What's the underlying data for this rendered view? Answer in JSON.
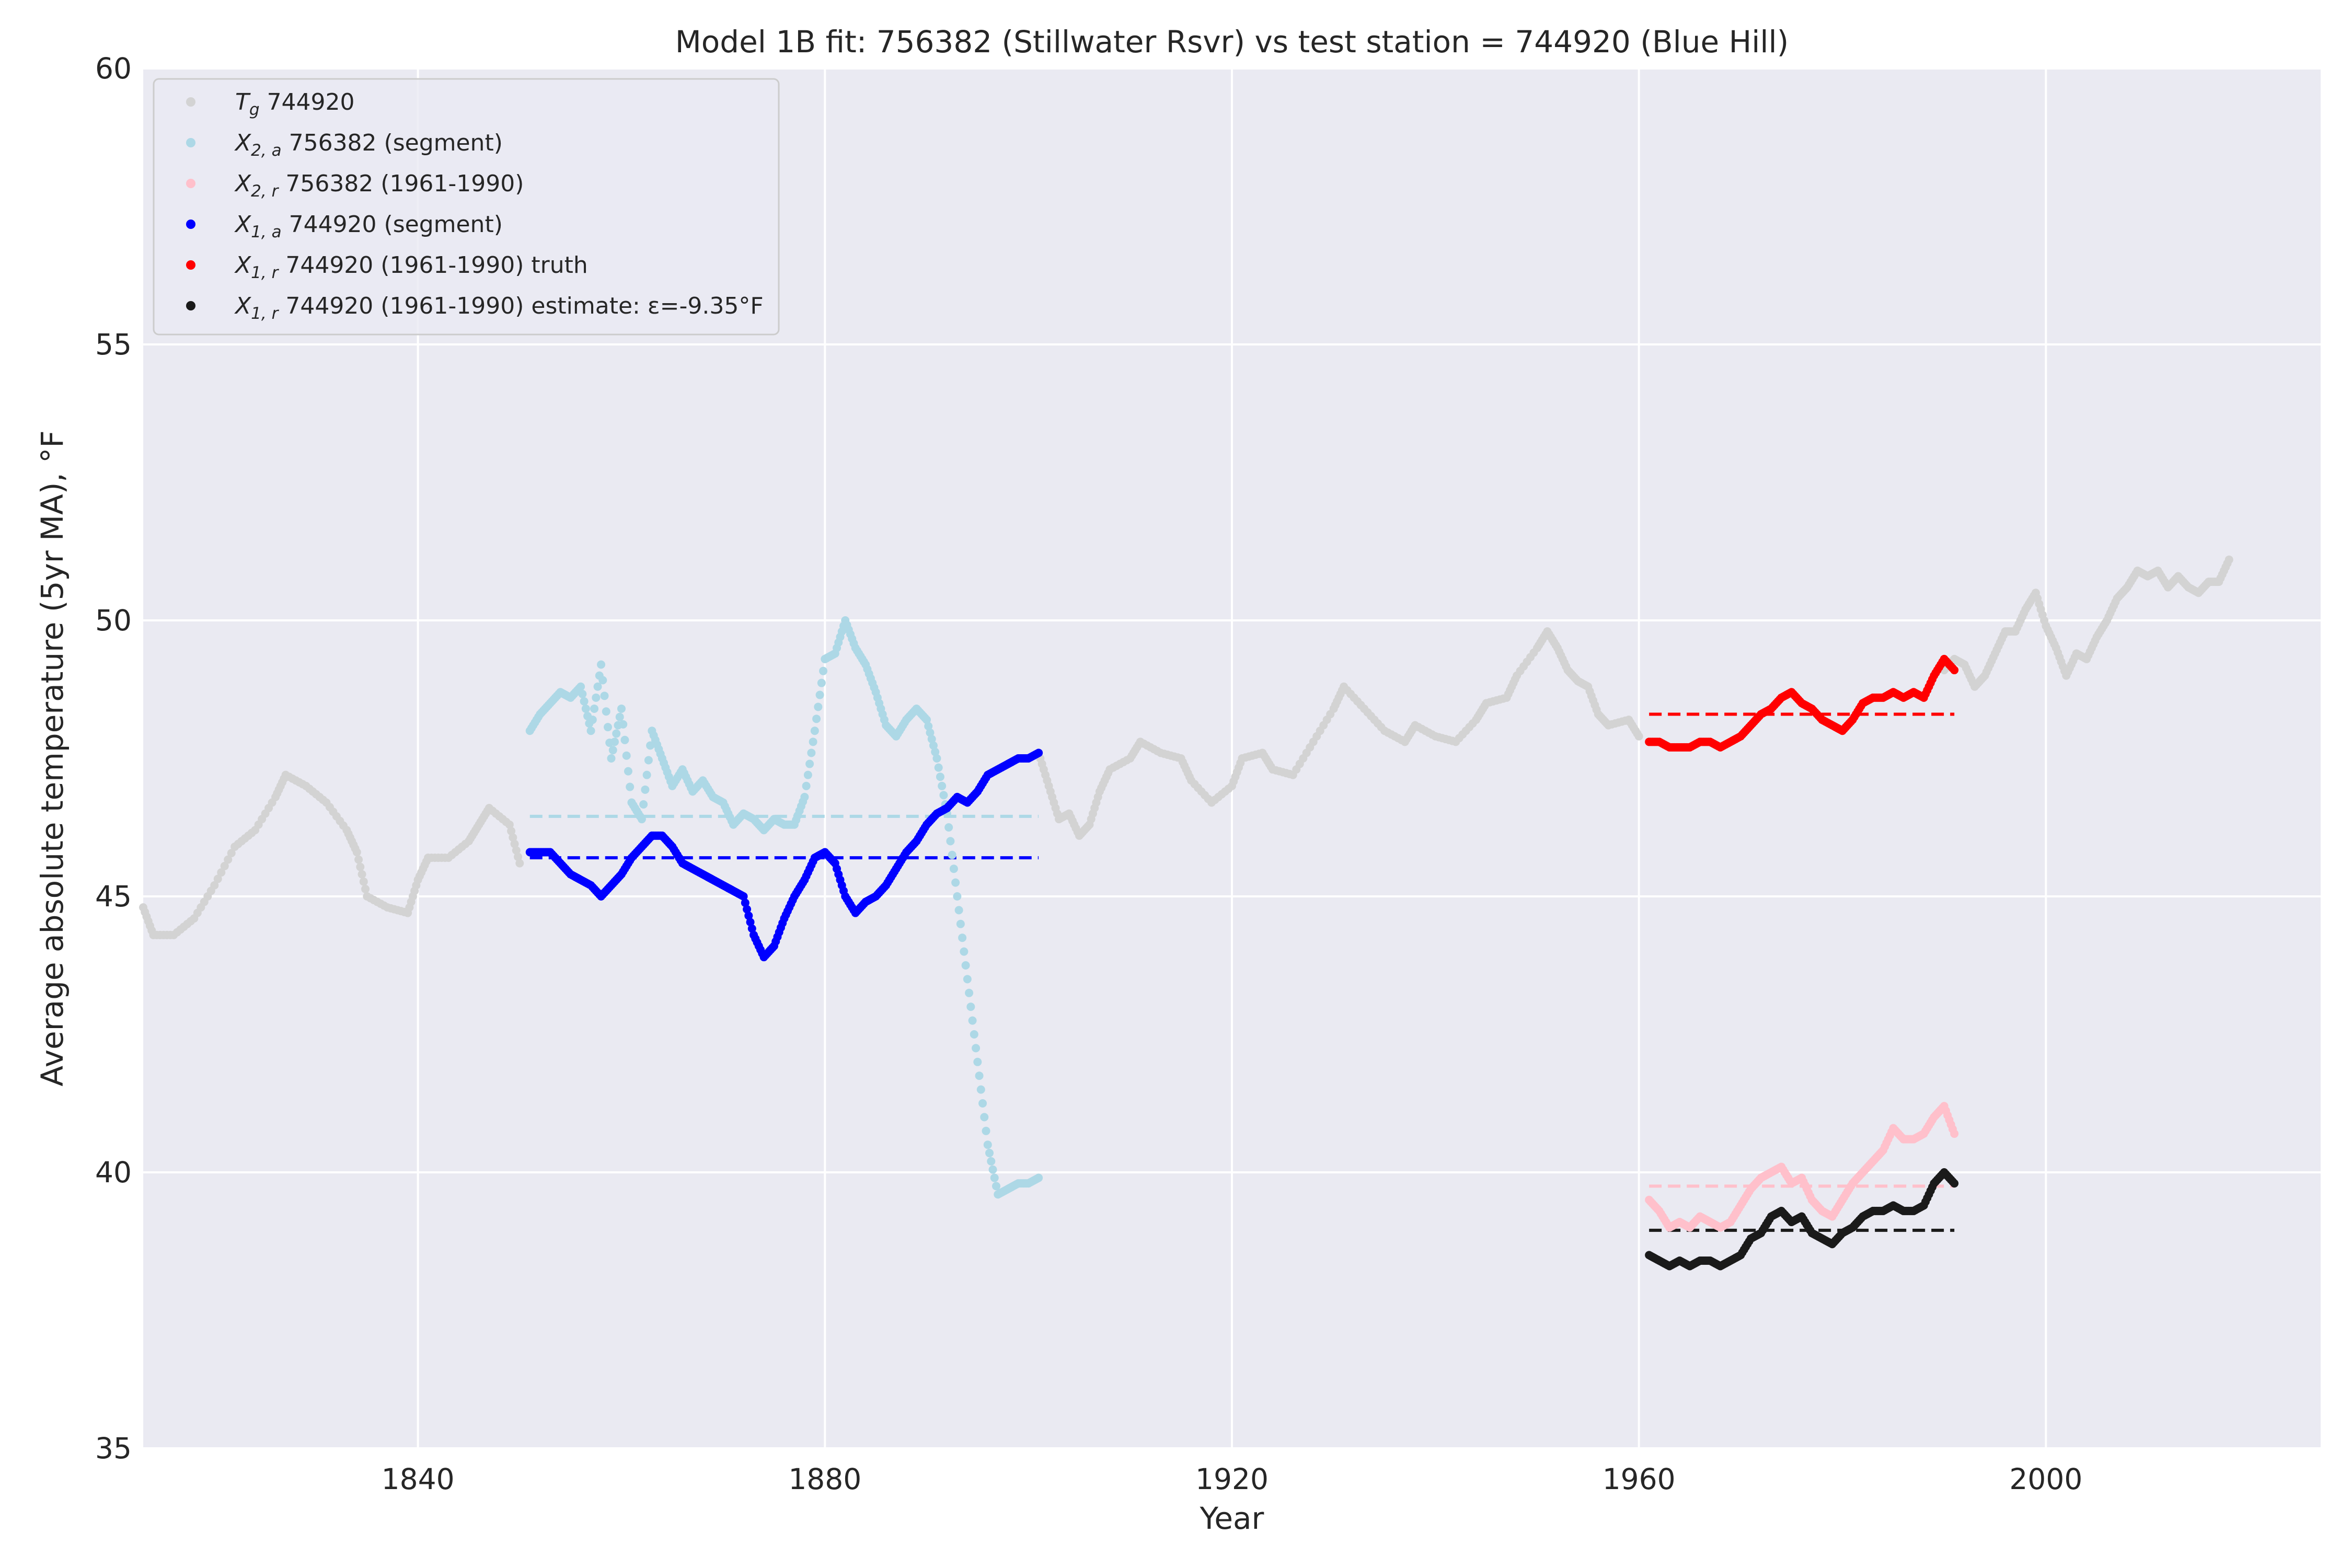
{
  "chart_data": {
    "type": "scatter",
    "title": "Model 1B fit: 756382 (Stillwater Rsvr) vs test station = 744920 (Blue Hill)",
    "xlabel": "Year",
    "ylabel": "Average absolute temperature (5yr MA), °F",
    "xlim": [
      1813,
      2027
    ],
    "ylim": [
      35,
      60
    ],
    "xticks": [
      1840,
      1880,
      1920,
      1960,
      2000
    ],
    "yticks": [
      35,
      40,
      45,
      50,
      55,
      60
    ],
    "grid": true,
    "legend_position": "top-left",
    "series": [
      {
        "key": "tg",
        "name_main": "T",
        "name_sub": "g",
        "name_rest": " 744920",
        "color": "#d3d3d3",
        "points": [
          [
            1813,
            44.8
          ],
          [
            1814,
            44.3
          ],
          [
            1816,
            44.3
          ],
          [
            1818,
            44.6
          ],
          [
            1820,
            45.2
          ],
          [
            1822,
            45.9
          ],
          [
            1824,
            46.2
          ],
          [
            1826,
            46.8
          ],
          [
            1827,
            47.2
          ],
          [
            1829,
            47.0
          ],
          [
            1831,
            46.7
          ],
          [
            1833,
            46.2
          ],
          [
            1834,
            45.8
          ],
          [
            1835,
            45.0
          ],
          [
            1837,
            44.8
          ],
          [
            1839,
            44.7
          ],
          [
            1840,
            45.3
          ],
          [
            1841,
            45.7
          ],
          [
            1843,
            45.7
          ],
          [
            1845,
            46.0
          ],
          [
            1846,
            46.3
          ],
          [
            1847,
            46.6
          ],
          [
            1849,
            46.3
          ],
          [
            1850,
            45.6
          ],
          [
            1901,
            47.6
          ],
          [
            1902,
            47.0
          ],
          [
            1903,
            46.4
          ],
          [
            1904,
            46.5
          ],
          [
            1905,
            46.1
          ],
          [
            1906,
            46.3
          ],
          [
            1907,
            46.9
          ],
          [
            1908,
            47.3
          ],
          [
            1910,
            47.5
          ],
          [
            1911,
            47.8
          ],
          [
            1913,
            47.6
          ],
          [
            1915,
            47.5
          ],
          [
            1916,
            47.1
          ],
          [
            1918,
            46.7
          ],
          [
            1920,
            47.0
          ],
          [
            1921,
            47.5
          ],
          [
            1923,
            47.6
          ],
          [
            1924,
            47.3
          ],
          [
            1926,
            47.2
          ],
          [
            1928,
            47.8
          ],
          [
            1930,
            48.4
          ],
          [
            1931,
            48.8
          ],
          [
            1933,
            48.4
          ],
          [
            1935,
            48.0
          ],
          [
            1937,
            47.8
          ],
          [
            1938,
            48.1
          ],
          [
            1940,
            47.9
          ],
          [
            1942,
            47.8
          ],
          [
            1944,
            48.2
          ],
          [
            1945,
            48.5
          ],
          [
            1947,
            48.6
          ],
          [
            1948,
            49.0
          ],
          [
            1950,
            49.5
          ],
          [
            1951,
            49.8
          ],
          [
            1952,
            49.5
          ],
          [
            1953,
            49.1
          ],
          [
            1954,
            48.9
          ],
          [
            1955,
            48.8
          ],
          [
            1956,
            48.3
          ],
          [
            1957,
            48.1
          ],
          [
            1959,
            48.2
          ],
          [
            1960,
            47.9
          ],
          [
            1990,
            49.1
          ],
          [
            1991,
            49.3
          ],
          [
            1992,
            49.2
          ],
          [
            1993,
            48.8
          ],
          [
            1994,
            49.0
          ],
          [
            1995,
            49.4
          ],
          [
            1996,
            49.8
          ],
          [
            1997,
            49.8
          ],
          [
            1998,
            50.2
          ],
          [
            1999,
            50.5
          ],
          [
            2000,
            49.9
          ],
          [
            2001,
            49.5
          ],
          [
            2002,
            49.0
          ],
          [
            2003,
            49.4
          ],
          [
            2004,
            49.3
          ],
          [
            2005,
            49.7
          ],
          [
            2006,
            50.0
          ],
          [
            2007,
            50.4
          ],
          [
            2008,
            50.6
          ],
          [
            2009,
            50.9
          ],
          [
            2010,
            50.8
          ],
          [
            2011,
            50.9
          ],
          [
            2012,
            50.6
          ],
          [
            2013,
            50.8
          ],
          [
            2014,
            50.6
          ],
          [
            2015,
            50.5
          ],
          [
            2016,
            50.7
          ],
          [
            2017,
            50.7
          ],
          [
            2018,
            51.1
          ]
        ]
      },
      {
        "key": "x2a",
        "name_main": "X",
        "name_sub": "2, a",
        "name_rest": " 756382 (segment)",
        "color": "#add8e6",
        "points": [
          [
            1851,
            48.0
          ],
          [
            1852,
            48.3
          ],
          [
            1853,
            48.5
          ],
          [
            1854,
            48.7
          ],
          [
            1855,
            48.6
          ],
          [
            1856,
            48.8
          ],
          [
            1857,
            48.0
          ],
          [
            1858,
            49.2
          ],
          [
            1859,
            47.5
          ],
          [
            1860,
            48.4
          ],
          [
            1861,
            46.7
          ],
          [
            1862,
            46.4
          ],
          [
            1863,
            48.0
          ],
          [
            1864,
            47.5
          ],
          [
            1865,
            47.0
          ],
          [
            1866,
            47.3
          ],
          [
            1867,
            46.9
          ],
          [
            1868,
            47.1
          ],
          [
            1869,
            46.8
          ],
          [
            1870,
            46.7
          ],
          [
            1871,
            46.3
          ],
          [
            1872,
            46.5
          ],
          [
            1873,
            46.4
          ],
          [
            1874,
            46.2
          ],
          [
            1875,
            46.4
          ],
          [
            1876,
            46.3
          ],
          [
            1877,
            46.3
          ],
          [
            1878,
            46.8
          ],
          [
            1879,
            48.0
          ],
          [
            1880,
            49.3
          ],
          [
            1881,
            49.4
          ],
          [
            1882,
            50.0
          ],
          [
            1883,
            49.5
          ],
          [
            1884,
            49.2
          ],
          [
            1885,
            48.7
          ],
          [
            1886,
            48.1
          ],
          [
            1887,
            47.9
          ],
          [
            1888,
            48.2
          ],
          [
            1889,
            48.4
          ],
          [
            1890,
            48.2
          ],
          [
            1891,
            47.5
          ],
          [
            1892,
            46.5
          ],
          [
            1893,
            45.0
          ],
          [
            1894,
            43.5
          ],
          [
            1895,
            42.0
          ],
          [
            1896,
            40.5
          ],
          [
            1897,
            39.6
          ],
          [
            1898,
            39.7
          ],
          [
            1899,
            39.8
          ],
          [
            1900,
            39.8
          ],
          [
            1901,
            39.9
          ]
        ]
      },
      {
        "key": "x2r",
        "name_main": "X",
        "name_sub": "2, r",
        "name_rest": " 756382 (1961-1990)",
        "color": "#ffc0cb",
        "points": [
          [
            1961,
            39.5
          ],
          [
            1962,
            39.3
          ],
          [
            1963,
            39.0
          ],
          [
            1964,
            39.1
          ],
          [
            1965,
            39.0
          ],
          [
            1966,
            39.2
          ],
          [
            1967,
            39.1
          ],
          [
            1968,
            39.0
          ],
          [
            1969,
            39.1
          ],
          [
            1970,
            39.4
          ],
          [
            1971,
            39.7
          ],
          [
            1972,
            39.9
          ],
          [
            1973,
            40.0
          ],
          [
            1974,
            40.1
          ],
          [
            1975,
            39.8
          ],
          [
            1976,
            39.9
          ],
          [
            1977,
            39.5
          ],
          [
            1978,
            39.3
          ],
          [
            1979,
            39.2
          ],
          [
            1980,
            39.5
          ],
          [
            1981,
            39.8
          ],
          [
            1982,
            40.0
          ],
          [
            1983,
            40.2
          ],
          [
            1984,
            40.4
          ],
          [
            1985,
            40.8
          ],
          [
            1986,
            40.6
          ],
          [
            1987,
            40.6
          ],
          [
            1988,
            40.7
          ],
          [
            1989,
            41.0
          ],
          [
            1990,
            41.2
          ],
          [
            1991,
            40.7
          ]
        ]
      },
      {
        "key": "x1a",
        "name_main": "X",
        "name_sub": "1, a",
        "name_rest": " 744920 (segment)",
        "color": "#0000ff",
        "points": [
          [
            1851,
            45.8
          ],
          [
            1852,
            45.8
          ],
          [
            1853,
            45.8
          ],
          [
            1854,
            45.6
          ],
          [
            1855,
            45.4
          ],
          [
            1856,
            45.3
          ],
          [
            1857,
            45.2
          ],
          [
            1858,
            45.0
          ],
          [
            1859,
            45.2
          ],
          [
            1860,
            45.4
          ],
          [
            1861,
            45.7
          ],
          [
            1862,
            45.9
          ],
          [
            1863,
            46.1
          ],
          [
            1864,
            46.1
          ],
          [
            1865,
            45.9
          ],
          [
            1866,
            45.6
          ],
          [
            1867,
            45.5
          ],
          [
            1868,
            45.4
          ],
          [
            1869,
            45.3
          ],
          [
            1870,
            45.2
          ],
          [
            1871,
            45.1
          ],
          [
            1872,
            45.0
          ],
          [
            1873,
            44.3
          ],
          [
            1874,
            43.9
          ],
          [
            1875,
            44.1
          ],
          [
            1876,
            44.6
          ],
          [
            1877,
            45.0
          ],
          [
            1878,
            45.3
          ],
          [
            1879,
            45.7
          ],
          [
            1880,
            45.8
          ],
          [
            1881,
            45.6
          ],
          [
            1882,
            45.0
          ],
          [
            1883,
            44.7
          ],
          [
            1884,
            44.9
          ],
          [
            1885,
            45.0
          ],
          [
            1886,
            45.2
          ],
          [
            1887,
            45.5
          ],
          [
            1888,
            45.8
          ],
          [
            1889,
            46.0
          ],
          [
            1890,
            46.3
          ],
          [
            1891,
            46.5
          ],
          [
            1892,
            46.6
          ],
          [
            1893,
            46.8
          ],
          [
            1894,
            46.7
          ],
          [
            1895,
            46.9
          ],
          [
            1896,
            47.2
          ],
          [
            1897,
            47.3
          ],
          [
            1898,
            47.4
          ],
          [
            1899,
            47.5
          ],
          [
            1900,
            47.5
          ],
          [
            1901,
            47.6
          ]
        ]
      },
      {
        "key": "x1r",
        "name_main": "X",
        "name_sub": "1, r",
        "name_rest": " 744920 (1961-1990) truth",
        "color": "#ff0000",
        "points": [
          [
            1961,
            47.8
          ],
          [
            1962,
            47.8
          ],
          [
            1963,
            47.7
          ],
          [
            1964,
            47.7
          ],
          [
            1965,
            47.7
          ],
          [
            1966,
            47.8
          ],
          [
            1967,
            47.8
          ],
          [
            1968,
            47.7
          ],
          [
            1969,
            47.8
          ],
          [
            1970,
            47.9
          ],
          [
            1971,
            48.1
          ],
          [
            1972,
            48.3
          ],
          [
            1973,
            48.4
          ],
          [
            1974,
            48.6
          ],
          [
            1975,
            48.7
          ],
          [
            1976,
            48.5
          ],
          [
            1977,
            48.4
          ],
          [
            1978,
            48.2
          ],
          [
            1979,
            48.1
          ],
          [
            1980,
            48.0
          ],
          [
            1981,
            48.2
          ],
          [
            1982,
            48.5
          ],
          [
            1983,
            48.6
          ],
          [
            1984,
            48.6
          ],
          [
            1985,
            48.7
          ],
          [
            1986,
            48.6
          ],
          [
            1987,
            48.7
          ],
          [
            1988,
            48.6
          ],
          [
            1989,
            49.0
          ],
          [
            1990,
            49.3
          ],
          [
            1991,
            49.1
          ]
        ]
      },
      {
        "key": "x1r_est",
        "name_main": "X",
        "name_sub": "1, r",
        "name_rest": " 744920 (1961-1990) estimate: ε=-9.35°F",
        "color": "#1a1a1a",
        "points": [
          [
            1961,
            38.5
          ],
          [
            1962,
            38.4
          ],
          [
            1963,
            38.3
          ],
          [
            1964,
            38.4
          ],
          [
            1965,
            38.3
          ],
          [
            1966,
            38.4
          ],
          [
            1967,
            38.4
          ],
          [
            1968,
            38.3
          ],
          [
            1969,
            38.4
          ],
          [
            1970,
            38.5
          ],
          [
            1971,
            38.8
          ],
          [
            1972,
            38.9
          ],
          [
            1973,
            39.2
          ],
          [
            1974,
            39.3
          ],
          [
            1975,
            39.1
          ],
          [
            1976,
            39.2
          ],
          [
            1977,
            38.9
          ],
          [
            1978,
            38.8
          ],
          [
            1979,
            38.7
          ],
          [
            1980,
            38.9
          ],
          [
            1981,
            39.0
          ],
          [
            1982,
            39.2
          ],
          [
            1983,
            39.3
          ],
          [
            1984,
            39.3
          ],
          [
            1985,
            39.4
          ],
          [
            1986,
            39.3
          ],
          [
            1987,
            39.3
          ],
          [
            1988,
            39.4
          ],
          [
            1989,
            39.8
          ],
          [
            1990,
            40.0
          ],
          [
            1991,
            39.8
          ]
        ]
      }
    ],
    "reference_lines": [
      {
        "series": "x2a",
        "x_start": 1851,
        "x_end": 1901,
        "y": 46.45,
        "color": "#add8e6"
      },
      {
        "series": "x1a",
        "x_start": 1851,
        "x_end": 1901,
        "y": 45.7,
        "color": "#0000ff"
      },
      {
        "series": "x1r",
        "x_start": 1961,
        "x_end": 1991,
        "y": 48.3,
        "color": "#ff0000"
      },
      {
        "series": "x2r",
        "x_start": 1961,
        "x_end": 1991,
        "y": 39.75,
        "color": "#ffc0cb"
      },
      {
        "series": "x1r_est",
        "x_start": 1961,
        "x_end": 1991,
        "y": 38.95,
        "color": "#1a1a1a"
      }
    ]
  }
}
